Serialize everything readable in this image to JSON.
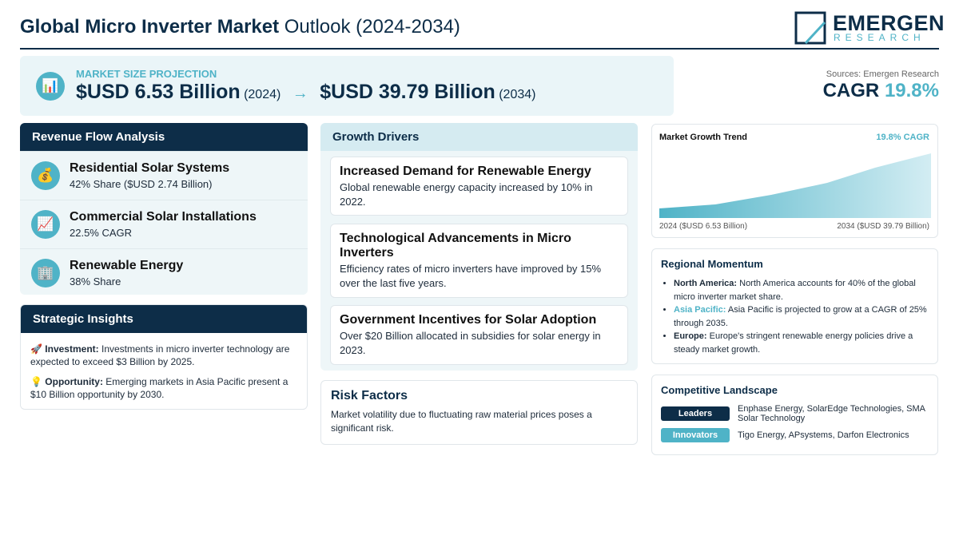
{
  "header": {
    "title_bold": "Global Micro Inverter Market",
    "title_rest": "Outlook (2024-2034)",
    "logo_name": "EMERGEN",
    "logo_sub": "RESEARCH"
  },
  "projection": {
    "icon": "📊",
    "label": "MARKET SIZE PROJECTION",
    "start_value": "$USD 6.53 Billion",
    "start_year": "(2024)",
    "arrow": "→",
    "end_value": "$USD 39.79 Billion",
    "end_year": "(2034)"
  },
  "source": {
    "text": "Sources: Emergen Research",
    "cagr_label": "CAGR",
    "cagr_value": "19.8%"
  },
  "revenue": {
    "title": "Revenue Flow Analysis",
    "items": [
      {
        "icon": "💰",
        "name": "Residential Solar Systems",
        "detail": "42% Share ($USD 2.74 Billion)"
      },
      {
        "icon": "📈",
        "name": "Commercial Solar Installations",
        "detail": "22.5% CAGR"
      },
      {
        "icon": "🏢",
        "name": "Renewable Energy",
        "detail": "38% Share"
      }
    ]
  },
  "insights": {
    "title": "Strategic Insights",
    "items": [
      {
        "icon": "🚀",
        "label": "Investment:",
        "text": "Investments in micro inverter technology are expected to exceed $3 Billion by 2025."
      },
      {
        "icon": "💡",
        "label": "Opportunity:",
        "text": "Emerging markets in Asia Pacific present a $10 Billion opportunity by 2030."
      }
    ]
  },
  "drivers": {
    "title": "Growth Drivers",
    "items": [
      {
        "title": "Increased Demand for Renewable Energy",
        "text": "Global renewable energy capacity increased by 10% in 2022."
      },
      {
        "title": "Technological Advancements in Micro Inverters",
        "text": "Efficiency rates of micro inverters have improved by 15% over the last five years."
      },
      {
        "title": "Government Incentives for Solar Adoption",
        "text": "Over $20 Billion allocated in subsidies for solar energy in 2023."
      }
    ]
  },
  "risk": {
    "title": "Risk Factors",
    "text": "Market volatility due to fluctuating raw material prices poses a significant risk."
  },
  "trend": {
    "title": "Market Growth Trend",
    "badge": "19.8% CAGR",
    "start_label": "2024 ($USD 6.53 Billion)",
    "end_label": "2034 ($USD 39.79 Billion)"
  },
  "regional": {
    "title": "Regional Momentum",
    "items": [
      {
        "region": "North America:",
        "text": "North America accounts for 40% of the global micro inverter market share."
      },
      {
        "region": "Asia Pacific:",
        "text": "Asia Pacific is projected to grow at a CAGR of 25% through 2035."
      },
      {
        "region": "Europe:",
        "text": "Europe's stringent renewable energy policies drive a steady market growth."
      }
    ]
  },
  "competitive": {
    "title": "Competitive Landscape",
    "rows": [
      {
        "tag": "Leaders",
        "text": "Enphase Energy, SolarEdge Technologies, SMA Solar Technology"
      },
      {
        "tag": "Innovators",
        "text": "Tigo Energy, APsystems, Darfon Electronics"
      }
    ]
  }
}
